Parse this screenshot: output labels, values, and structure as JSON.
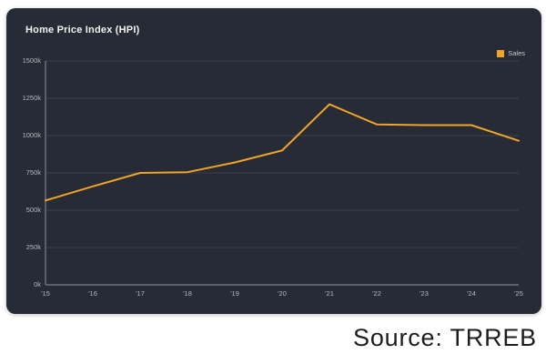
{
  "card": {
    "title": "Home Price Index (HPI)"
  },
  "legend": {
    "label": "Sales",
    "swatch_color": "#f0a42a"
  },
  "source": {
    "text": "Source: TRREB"
  },
  "colors": {
    "card_bg": "#262b35",
    "gridline": "#3c414d",
    "axis_line": "#6a7078",
    "tick_text": "#b4b8c0",
    "title_text": "#f2f3f5",
    "line": "#f0a42a"
  },
  "chart_data": {
    "type": "line",
    "title": "Home Price Index (HPI)",
    "categories": [
      "'15",
      "'16",
      "'17",
      "'18",
      "'19",
      "'20",
      "'21",
      "'22",
      "'23",
      "'24",
      "'25"
    ],
    "series": [
      {
        "name": "Sales",
        "color": "#f0a42a",
        "values": [
          565,
          660,
          750,
          755,
          820,
          900,
          1210,
          1075,
          1070,
          1070,
          965
        ]
      }
    ],
    "unit": "thousands",
    "xlabel": "",
    "ylabel": "",
    "ylim": [
      0,
      1500
    ],
    "y_ticks": [
      "0k",
      "250k",
      "500k",
      "750k",
      "1000k",
      "1250k",
      "1500k"
    ],
    "grid": "horizontal",
    "legend_position": "top-right"
  }
}
